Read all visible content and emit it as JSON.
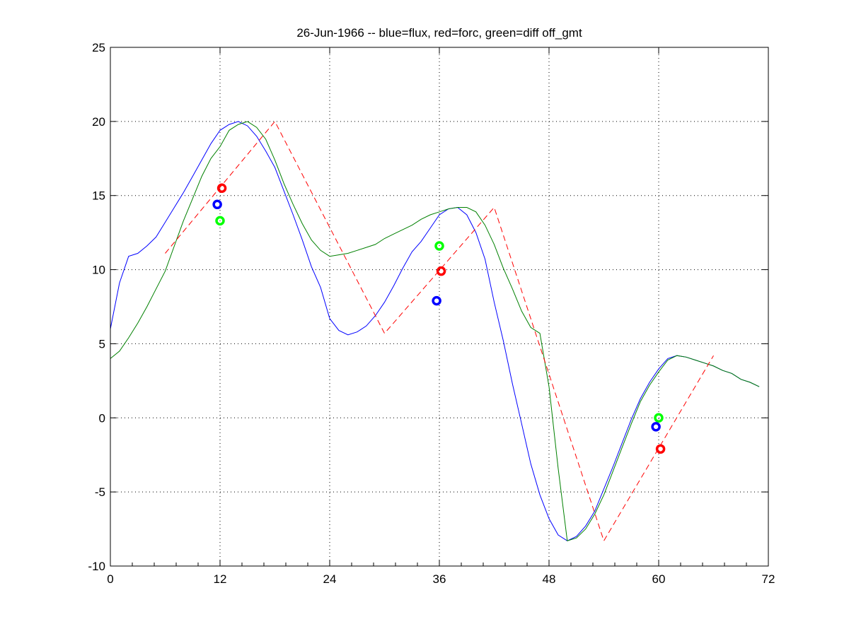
{
  "chart_data": {
    "type": "line",
    "title": "26-Jun-1966 -- blue=flux, red=forc, green=diff off_gmt",
    "xlabel": "",
    "ylabel": "",
    "xlim": [
      0,
      72
    ],
    "ylim": [
      -10,
      25
    ],
    "xticks": [
      0,
      12,
      24,
      36,
      48,
      60,
      72
    ],
    "yticks": [
      -10,
      -5,
      0,
      5,
      10,
      15,
      20,
      25
    ],
    "grid": true,
    "series": [
      {
        "color": "#0000ff",
        "style": "solid",
        "x": [
          0,
          1,
          2,
          3,
          4,
          5,
          6,
          7,
          8,
          9,
          10,
          11,
          12,
          13,
          14,
          15,
          16,
          17,
          18,
          19,
          20,
          21,
          22,
          23,
          24,
          25,
          26,
          27,
          28,
          29,
          30,
          31,
          32,
          33,
          34,
          35,
          36,
          37,
          38,
          39,
          40,
          41,
          42,
          43,
          44,
          45,
          46,
          47,
          48,
          49,
          50,
          51,
          52,
          53,
          54,
          55,
          56,
          57,
          58,
          59,
          60,
          61,
          62,
          63,
          64,
          65,
          66,
          67,
          68,
          69,
          70,
          71
        ],
        "y": [
          6.0,
          9.1,
          10.9,
          11.1,
          11.6,
          12.2,
          13.2,
          14.2,
          15.2,
          16.3,
          17.4,
          18.5,
          19.4,
          19.8,
          20.0,
          19.7,
          19.0,
          18.0,
          16.9,
          15.3,
          13.7,
          12.0,
          10.2,
          8.8,
          6.7,
          5.9,
          5.6,
          5.8,
          6.2,
          6.9,
          7.8,
          8.9,
          10.1,
          11.2,
          11.9,
          12.8,
          13.7,
          14.1,
          14.2,
          13.7,
          12.5,
          10.7,
          7.8,
          5.2,
          2.3,
          -0.4,
          -3.1,
          -5.2,
          -6.8,
          -7.9,
          -8.3,
          -8.0,
          -7.3,
          -6.3,
          -4.8,
          -3.3,
          -1.7,
          -0.1,
          1.3,
          2.4,
          3.3,
          4.0,
          4.2,
          4.1,
          3.9,
          3.7,
          3.5,
          3.2,
          3.0,
          2.6,
          2.4,
          2.1
        ]
      },
      {
        "color": "#008000",
        "style": "solid",
        "x": [
          0,
          1,
          2,
          3,
          4,
          5,
          6,
          7,
          8,
          9,
          10,
          11,
          12,
          13,
          14,
          15,
          16,
          17,
          18,
          19,
          20,
          21,
          22,
          23,
          24,
          25,
          26,
          27,
          28,
          29,
          30,
          31,
          32,
          33,
          34,
          35,
          36,
          37,
          38,
          39,
          40,
          41,
          42,
          43,
          44,
          45,
          46,
          47,
          48,
          49,
          50,
          51,
          52,
          53,
          54,
          55,
          56,
          57,
          58,
          59,
          60,
          61,
          62,
          63,
          64,
          65,
          66,
          67,
          68,
          69,
          70,
          71
        ],
        "y": [
          4.0,
          4.5,
          5.4,
          6.4,
          7.5,
          8.7,
          9.9,
          11.6,
          13.3,
          14.8,
          16.3,
          17.5,
          18.3,
          19.4,
          19.8,
          20.0,
          19.6,
          18.8,
          17.4,
          15.8,
          14.4,
          13.1,
          12.0,
          11.3,
          10.9,
          11.0,
          11.1,
          11.3,
          11.5,
          11.7,
          12.1,
          12.4,
          12.7,
          13.0,
          13.4,
          13.7,
          13.9,
          14.1,
          14.2,
          14.2,
          13.9,
          13.0,
          11.7,
          10.1,
          8.7,
          7.2,
          6.1,
          5.7,
          2.1,
          -3.4,
          -8.3,
          -8.1,
          -7.5,
          -6.5,
          -5.2,
          -3.6,
          -2.0,
          -0.4,
          1.1,
          2.2,
          3.1,
          3.9,
          4.2,
          4.1,
          3.9,
          3.7,
          3.5,
          3.2,
          3.0,
          2.6,
          2.4,
          2.1
        ]
      },
      {
        "color": "#ff0000",
        "style": "dashed",
        "x": [
          6,
          18,
          30,
          42,
          54,
          66
        ],
        "y": [
          11.1,
          20.0,
          5.7,
          14.2,
          -8.3,
          4.2
        ]
      }
    ],
    "markers": [
      {
        "color": "#ff0000",
        "x": 12.2,
        "y": 15.5
      },
      {
        "color": "#0000ff",
        "x": 11.7,
        "y": 14.4
      },
      {
        "color": "#00ff00",
        "x": 12.0,
        "y": 13.3
      },
      {
        "color": "#00ff00",
        "x": 36.0,
        "y": 11.6
      },
      {
        "color": "#ff0000",
        "x": 36.2,
        "y": 9.9
      },
      {
        "color": "#0000ff",
        "x": 35.7,
        "y": 7.9
      },
      {
        "color": "#00ff00",
        "x": 60.0,
        "y": 0.0
      },
      {
        "color": "#0000ff",
        "x": 59.7,
        "y": -0.6
      },
      {
        "color": "#ff0000",
        "x": 60.2,
        "y": -2.1
      }
    ]
  }
}
